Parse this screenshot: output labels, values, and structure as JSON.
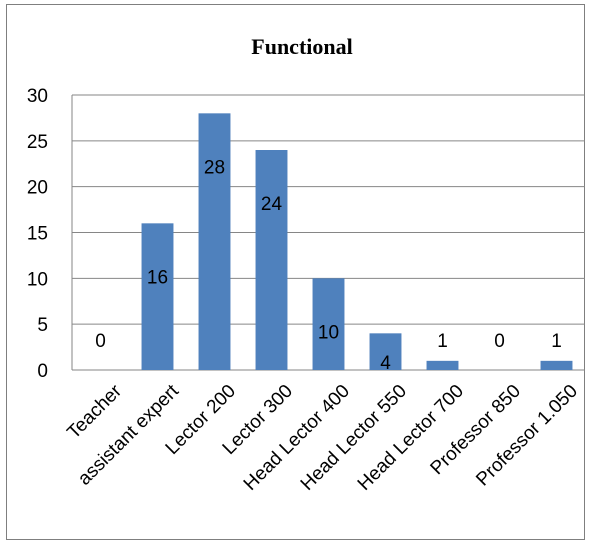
{
  "chart_data": {
    "type": "bar",
    "title": "Functional",
    "categories": [
      "Teacher",
      "assistant expert",
      "Lector 200",
      "Lector 300",
      "Head Lector 400",
      "Head Lector 550",
      "Head Lector 700",
      "Professor 850",
      "Professor 1.050"
    ],
    "values": [
      0,
      16,
      28,
      24,
      10,
      4,
      1,
      0,
      1
    ],
    "data_labels": [
      "0",
      "16",
      "28",
      "24",
      "10",
      "4",
      "1",
      "0",
      "1"
    ],
    "y_ticks": [
      "0",
      "5",
      "10",
      "15",
      "20",
      "25",
      "30"
    ],
    "ylim": [
      0,
      30
    ],
    "grid": true,
    "legend": "none",
    "bar_color": "#4f81bd"
  }
}
